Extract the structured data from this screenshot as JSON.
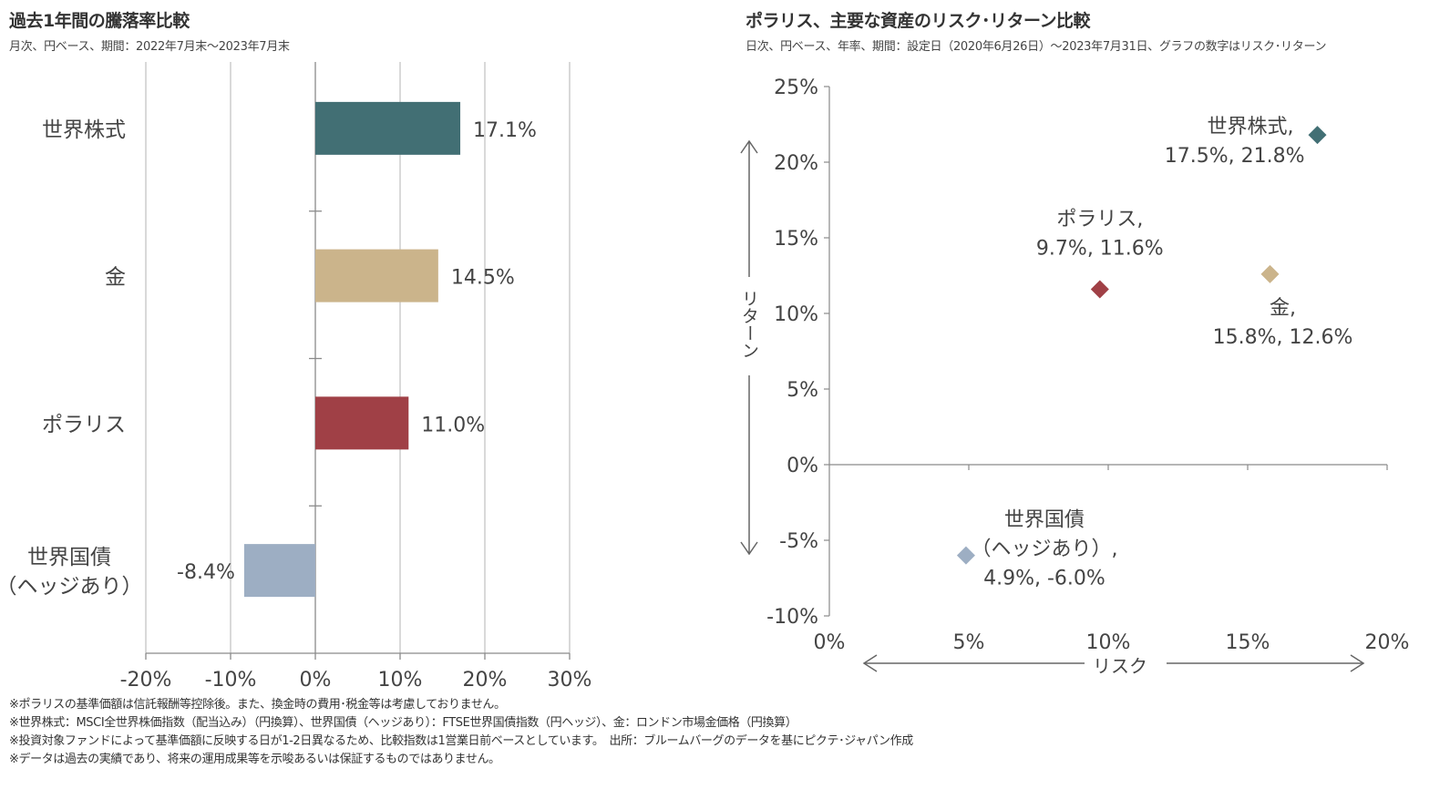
{
  "left_chart": {
    "title": "過去1年間の騰落率比較",
    "subtitle": "月次、円ベース、期間：2022年7月末～2023年7月末"
  },
  "right_chart": {
    "title": "ポラリス、主要な資産のリスク･リターン比較",
    "subtitle": "日次、円ベース、年率、期間：設定日（2020年6月26日）～2023年7月31日、グラフの数字はリスク･リターン"
  },
  "footnotes": [
    "※ポラリスの基準価額は信託報酬等控除後。また、換金時の費用･税金等は考慮しておりません。",
    "※世界株式：MSCI全世界株価指数（配当込み）（円換算）、世界国債（ヘッジあり）：FTSE世界国債指数（円ヘッジ）、金：ロンドン市場金価格（円換算）",
    "※投資対象ファンドによって基準価額に反映する日が1-2日異なるため、比較指数は1営業日前ベースとしています。　出所：ブルームバーグのデータを基にピクテ･ジャパン作成",
    "※データは過去の実績であり、将来の運用成果等を示唆あるいは保証するものではありません。"
  ],
  "chart_data": [
    {
      "type": "bar",
      "orientation": "horizontal",
      "title": "過去1年間の騰落率比較",
      "subtitle": "月次、円ベース、期間：2022年7月末～2023年7月末",
      "categories": [
        {
          "lines": [
            "世界株式"
          ]
        },
        {
          "lines": [
            "金"
          ]
        },
        {
          "lines": [
            "ポラリス"
          ]
        },
        {
          "lines": [
            "世界国債",
            "（ヘッジあり）"
          ]
        }
      ],
      "values": [
        17.1,
        14.5,
        11.0,
        -8.4
      ],
      "value_labels": [
        "17.1%",
        "14.5%",
        "11.0%",
        "-8.4%"
      ],
      "colors": [
        "#426f74",
        "#cbb48b",
        "#a04046",
        "#9daec3"
      ],
      "xlim": [
        -20,
        30
      ],
      "xticks": [
        -20,
        -10,
        0,
        10,
        20,
        30
      ],
      "xtick_labels": [
        "-20%",
        "-10%",
        "0%",
        "10%",
        "20%",
        "30%"
      ],
      "xlabel": "",
      "ylabel": "",
      "grid": true
    },
    {
      "type": "scatter",
      "title": "ポラリス、主要な資産のリスク･リターン比較",
      "subtitle": "日次、円ベース、年率、期間：設定日（2020年6月26日）～2023年7月31日、グラフの数字はリスク･リターン",
      "xlabel": "リスク",
      "ylabel": "リターン",
      "xlim": [
        0,
        20
      ],
      "ylim": [
        -10,
        25
      ],
      "xticks": [
        0,
        5,
        10,
        15,
        20
      ],
      "xtick_labels": [
        "0%",
        "5%",
        "10%",
        "15%",
        "20%"
      ],
      "yticks": [
        -10,
        -5,
        0,
        5,
        10,
        15,
        20,
        25
      ],
      "ytick_labels": [
        "-10%",
        "-5%",
        "0%",
        "5%",
        "10%",
        "15%",
        "20%",
        "25%"
      ],
      "grid": false,
      "points": [
        {
          "name": "世界株式",
          "x": 17.5,
          "y": 21.8,
          "color": "#426f74",
          "label_lines": [
            "世界株式,",
            "17.5%, 21.8%"
          ],
          "label_position": "left"
        },
        {
          "name": "ポラリス",
          "x": 9.7,
          "y": 11.6,
          "color": "#a04046",
          "label_lines": [
            "ポラリス,",
            "9.7%, 11.6%"
          ],
          "label_position": "top"
        },
        {
          "name": "金",
          "x": 15.8,
          "y": 12.6,
          "color": "#cbb48b",
          "label_lines": [
            "金,",
            "15.8%, 12.6%"
          ],
          "label_position": "bottom"
        },
        {
          "name": "世界国債（ヘッジあり）",
          "x": 4.9,
          "y": -6.0,
          "color": "#9daec3",
          "label_lines": [
            "世界国債",
            "（ヘッジあり）,",
            "4.9%, -6.0%"
          ],
          "label_position": "right"
        }
      ]
    }
  ]
}
